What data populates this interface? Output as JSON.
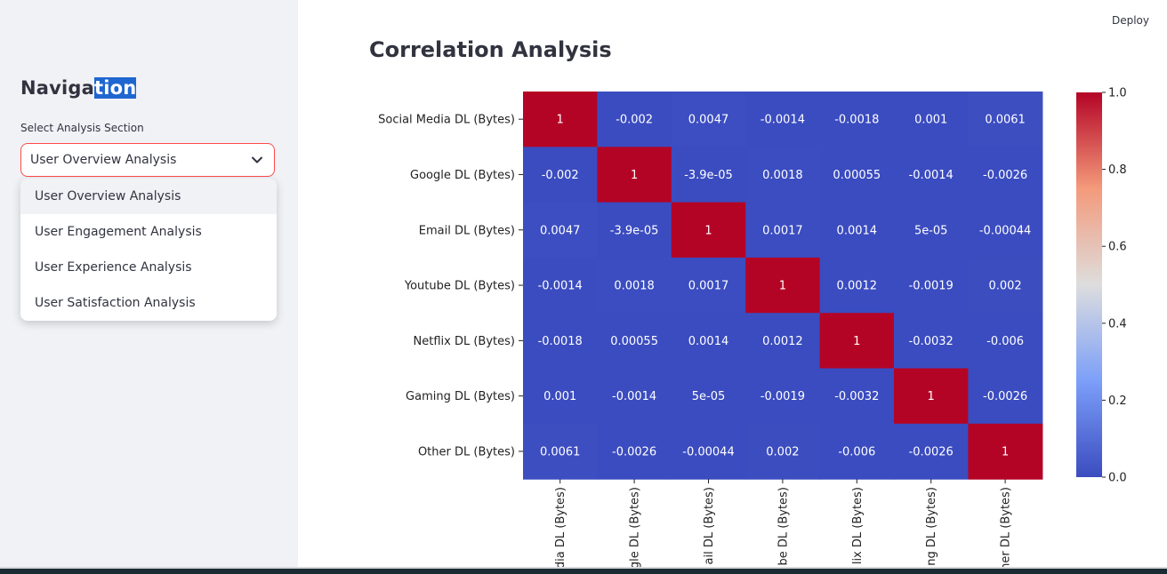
{
  "sidebar": {
    "title_part1": "Naviga",
    "title_part2": "tion",
    "select_label": "Select Analysis Section",
    "selected_value": "User Overview Analysis",
    "options": [
      "User Overview Analysis",
      "User Engagement Analysis",
      "User Experience Analysis",
      "User Satisfaction Analysis"
    ]
  },
  "header": {
    "deploy_label": "Deploy"
  },
  "main": {
    "title": "Correlation Analysis"
  },
  "colors": {
    "accent": "#ff4b4b",
    "sidebar_bg": "#f0f2f6",
    "selection": "#1f66d1"
  },
  "chart_data": {
    "type": "heatmap",
    "title": "",
    "row_labels": [
      "Social Media DL (Bytes)",
      "Google DL (Bytes)",
      "Email DL (Bytes)",
      "Youtube DL (Bytes)",
      "Netflix DL (Bytes)",
      "Gaming DL (Bytes)",
      "Other DL (Bytes)"
    ],
    "col_labels_visible": [
      "dia DL (Bytes)",
      "gle DL (Bytes)",
      "ail DL (Bytes)",
      "be DL (Bytes)",
      "lix DL (Bytes)",
      "ng DL (Bytes)",
      "her DL (Bytes)"
    ],
    "values": [
      [
        1,
        -0.002,
        0.0047,
        -0.0014,
        -0.0018,
        0.001,
        0.0061
      ],
      [
        -0.002,
        1,
        -3.9e-05,
        0.0018,
        0.00055,
        -0.0014,
        -0.0026
      ],
      [
        0.0047,
        -3.9e-05,
        1,
        0.0017,
        0.0014,
        5e-05,
        -0.00044
      ],
      [
        -0.0014,
        0.0018,
        0.0017,
        1,
        0.0012,
        -0.0019,
        0.002
      ],
      [
        -0.0018,
        0.00055,
        0.0014,
        0.0012,
        1,
        -0.0032,
        -0.006
      ],
      [
        0.001,
        -0.0014,
        5e-05,
        -0.0019,
        -0.0032,
        1,
        -0.0026
      ],
      [
        0.0061,
        -0.0026,
        -0.00044,
        0.002,
        -0.006,
        -0.0026,
        1
      ]
    ],
    "annotations": [
      [
        "1",
        "-0.002",
        "0.0047",
        "-0.0014",
        "-0.0018",
        "0.001",
        "0.0061"
      ],
      [
        "-0.002",
        "1",
        "-3.9e-05",
        "0.0018",
        "0.00055",
        "-0.0014",
        "-0.0026"
      ],
      [
        "0.0047",
        "-3.9e-05",
        "1",
        "0.0017",
        "0.0014",
        "5e-05",
        "-0.00044"
      ],
      [
        "-0.0014",
        "0.0018",
        "0.0017",
        "1",
        "0.0012",
        "-0.0019",
        "0.002"
      ],
      [
        "-0.0018",
        "0.00055",
        "0.0014",
        "0.0012",
        "1",
        "-0.0032",
        "-0.006"
      ],
      [
        "0.001",
        "-0.0014",
        "5e-05",
        "-0.0019",
        "-0.0032",
        "1",
        "-0.0026"
      ],
      [
        "0.0061",
        "-0.0026",
        "-0.00044",
        "0.002",
        "-0.006",
        "-0.0026",
        "1"
      ]
    ],
    "colormap": "coolwarm",
    "colorbar_ticks": [
      "0.0",
      "0.2",
      "0.4",
      "0.6",
      "0.8",
      "1.0"
    ],
    "vmin": 0.0,
    "vmax": 1.0
  }
}
